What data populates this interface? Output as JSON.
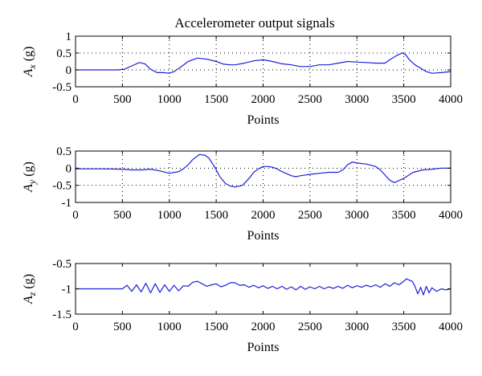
{
  "chart_data": [
    {
      "type": "line",
      "title": "Accelerometer output signals",
      "ylabel": "A_x (g)",
      "ylabel_main": "A",
      "ylabel_sub": "x",
      "ylabel_unit": " (g)",
      "xlabel": "Points",
      "xlim": [
        0,
        4000
      ],
      "ylim": [
        -0.5,
        1
      ],
      "xticks": [
        0,
        500,
        1000,
        1500,
        2000,
        2500,
        3000,
        3500,
        4000
      ],
      "yticks": [
        -0.5,
        0,
        0.5,
        1
      ],
      "grid": true,
      "color": "#1f1fd6",
      "series": [
        {
          "x": [
            0,
            250,
            450,
            520,
            600,
            680,
            740,
            800,
            870,
            940,
            1000,
            1050,
            1120,
            1200,
            1300,
            1400,
            1500,
            1580,
            1650,
            1700,
            1800,
            1900,
            2000,
            2100,
            2200,
            2300,
            2400,
            2500,
            2600,
            2700,
            2800,
            2900,
            3000,
            3100,
            3200,
            3300,
            3350,
            3420,
            3480,
            3520,
            3560,
            3620,
            3680,
            3740,
            3800,
            3900,
            4000
          ],
          "y": [
            0,
            0,
            0,
            0.02,
            0.12,
            0.22,
            0.18,
            0.02,
            -0.08,
            -0.08,
            -0.1,
            -0.05,
            0.08,
            0.25,
            0.35,
            0.32,
            0.25,
            0.17,
            0.15,
            0.15,
            0.2,
            0.27,
            0.3,
            0.25,
            0.18,
            0.15,
            0.1,
            0.1,
            0.15,
            0.15,
            0.2,
            0.25,
            0.23,
            0.22,
            0.2,
            0.2,
            0.3,
            0.42,
            0.5,
            0.45,
            0.3,
            0.15,
            0.05,
            -0.05,
            -0.1,
            -0.08,
            -0.05
          ]
        }
      ]
    },
    {
      "type": "line",
      "ylabel": "A_y (g)",
      "ylabel_main": "A",
      "ylabel_sub": "y",
      "ylabel_unit": " (g)",
      "xlabel": "Points",
      "xlim": [
        0,
        4000
      ],
      "ylim": [
        -1,
        0.5
      ],
      "xticks": [
        0,
        500,
        1000,
        1500,
        2000,
        2500,
        3000,
        3500,
        4000
      ],
      "yticks": [
        -1,
        -0.5,
        0,
        0.5
      ],
      "grid": true,
      "color": "#1f1fd6",
      "series": [
        {
          "x": [
            0,
            300,
            500,
            600,
            700,
            800,
            900,
            1000,
            1100,
            1150,
            1200,
            1250,
            1320,
            1380,
            1420,
            1480,
            1540,
            1600,
            1650,
            1700,
            1780,
            1850,
            1900,
            1950,
            2000,
            2050,
            2100,
            2150,
            2200,
            2300,
            2350,
            2400,
            2500,
            2600,
            2700,
            2800,
            2850,
            2900,
            2950,
            3000,
            3100,
            3200,
            3250,
            3300,
            3350,
            3400,
            3500,
            3600,
            3700,
            3800,
            3900,
            4000
          ],
          "y": [
            -0.02,
            -0.02,
            -0.03,
            -0.05,
            -0.05,
            -0.03,
            -0.08,
            -0.15,
            -0.1,
            -0.02,
            0.1,
            0.25,
            0.4,
            0.38,
            0.3,
            0.05,
            -0.25,
            -0.45,
            -0.52,
            -0.55,
            -0.5,
            -0.3,
            -0.12,
            -0.02,
            0.05,
            0.05,
            0.03,
            -0.02,
            -0.1,
            -0.22,
            -0.25,
            -0.22,
            -0.18,
            -0.15,
            -0.12,
            -0.12,
            -0.05,
            0.1,
            0.18,
            0.15,
            0.12,
            0.05,
            -0.05,
            -0.2,
            -0.35,
            -0.42,
            -0.3,
            -0.12,
            -0.05,
            -0.03,
            0.0,
            0.0
          ]
        }
      ]
    },
    {
      "type": "line",
      "ylabel": "A_z (g)",
      "ylabel_main": "A",
      "ylabel_sub": "z",
      "ylabel_unit": " (g)",
      "xlabel": "Points",
      "xlim": [
        0,
        4000
      ],
      "ylim": [
        -1.5,
        -0.5
      ],
      "xticks": [
        0,
        500,
        1000,
        1500,
        2000,
        2500,
        3000,
        3500,
        4000
      ],
      "yticks": [
        -1.5,
        -1,
        -0.5
      ],
      "grid": false,
      "color": "#1f1fd6",
      "series": [
        {
          "x": [
            0,
            300,
            500,
            550,
            600,
            650,
            700,
            750,
            800,
            850,
            900,
            950,
            1000,
            1050,
            1100,
            1150,
            1200,
            1250,
            1300,
            1350,
            1400,
            1450,
            1500,
            1550,
            1600,
            1650,
            1700,
            1750,
            1800,
            1850,
            1900,
            1950,
            2000,
            2050,
            2100,
            2150,
            2200,
            2250,
            2300,
            2350,
            2400,
            2450,
            2500,
            2550,
            2600,
            2650,
            2700,
            2750,
            2800,
            2850,
            2900,
            2950,
            3000,
            3050,
            3100,
            3150,
            3200,
            3250,
            3300,
            3350,
            3400,
            3450,
            3500,
            3530,
            3560,
            3590,
            3620,
            3650,
            3680,
            3710,
            3740,
            3770,
            3800,
            3850,
            3900,
            3950,
            4000
          ],
          "y": [
            -1.0,
            -1.0,
            -1.0,
            -0.93,
            -1.05,
            -0.92,
            -1.06,
            -0.89,
            -1.08,
            -0.9,
            -1.07,
            -0.92,
            -1.05,
            -0.93,
            -1.04,
            -0.94,
            -0.95,
            -0.87,
            -0.85,
            -0.9,
            -0.95,
            -0.92,
            -0.9,
            -0.96,
            -0.93,
            -0.88,
            -0.88,
            -0.93,
            -0.92,
            -0.97,
            -0.93,
            -0.98,
            -0.94,
            -0.99,
            -0.95,
            -1.0,
            -0.95,
            -1.01,
            -0.96,
            -1.02,
            -0.95,
            -1.01,
            -0.96,
            -1.0,
            -0.95,
            -1.0,
            -0.96,
            -0.99,
            -0.95,
            -0.99,
            -0.93,
            -0.98,
            -0.94,
            -0.97,
            -0.93,
            -0.96,
            -0.92,
            -0.97,
            -0.9,
            -0.95,
            -0.88,
            -0.92,
            -0.85,
            -0.8,
            -0.83,
            -0.85,
            -0.95,
            -1.1,
            -0.97,
            -1.12,
            -0.95,
            -1.08,
            -0.98,
            -1.05,
            -1.0,
            -1.02,
            -1.0
          ]
        }
      ]
    }
  ]
}
